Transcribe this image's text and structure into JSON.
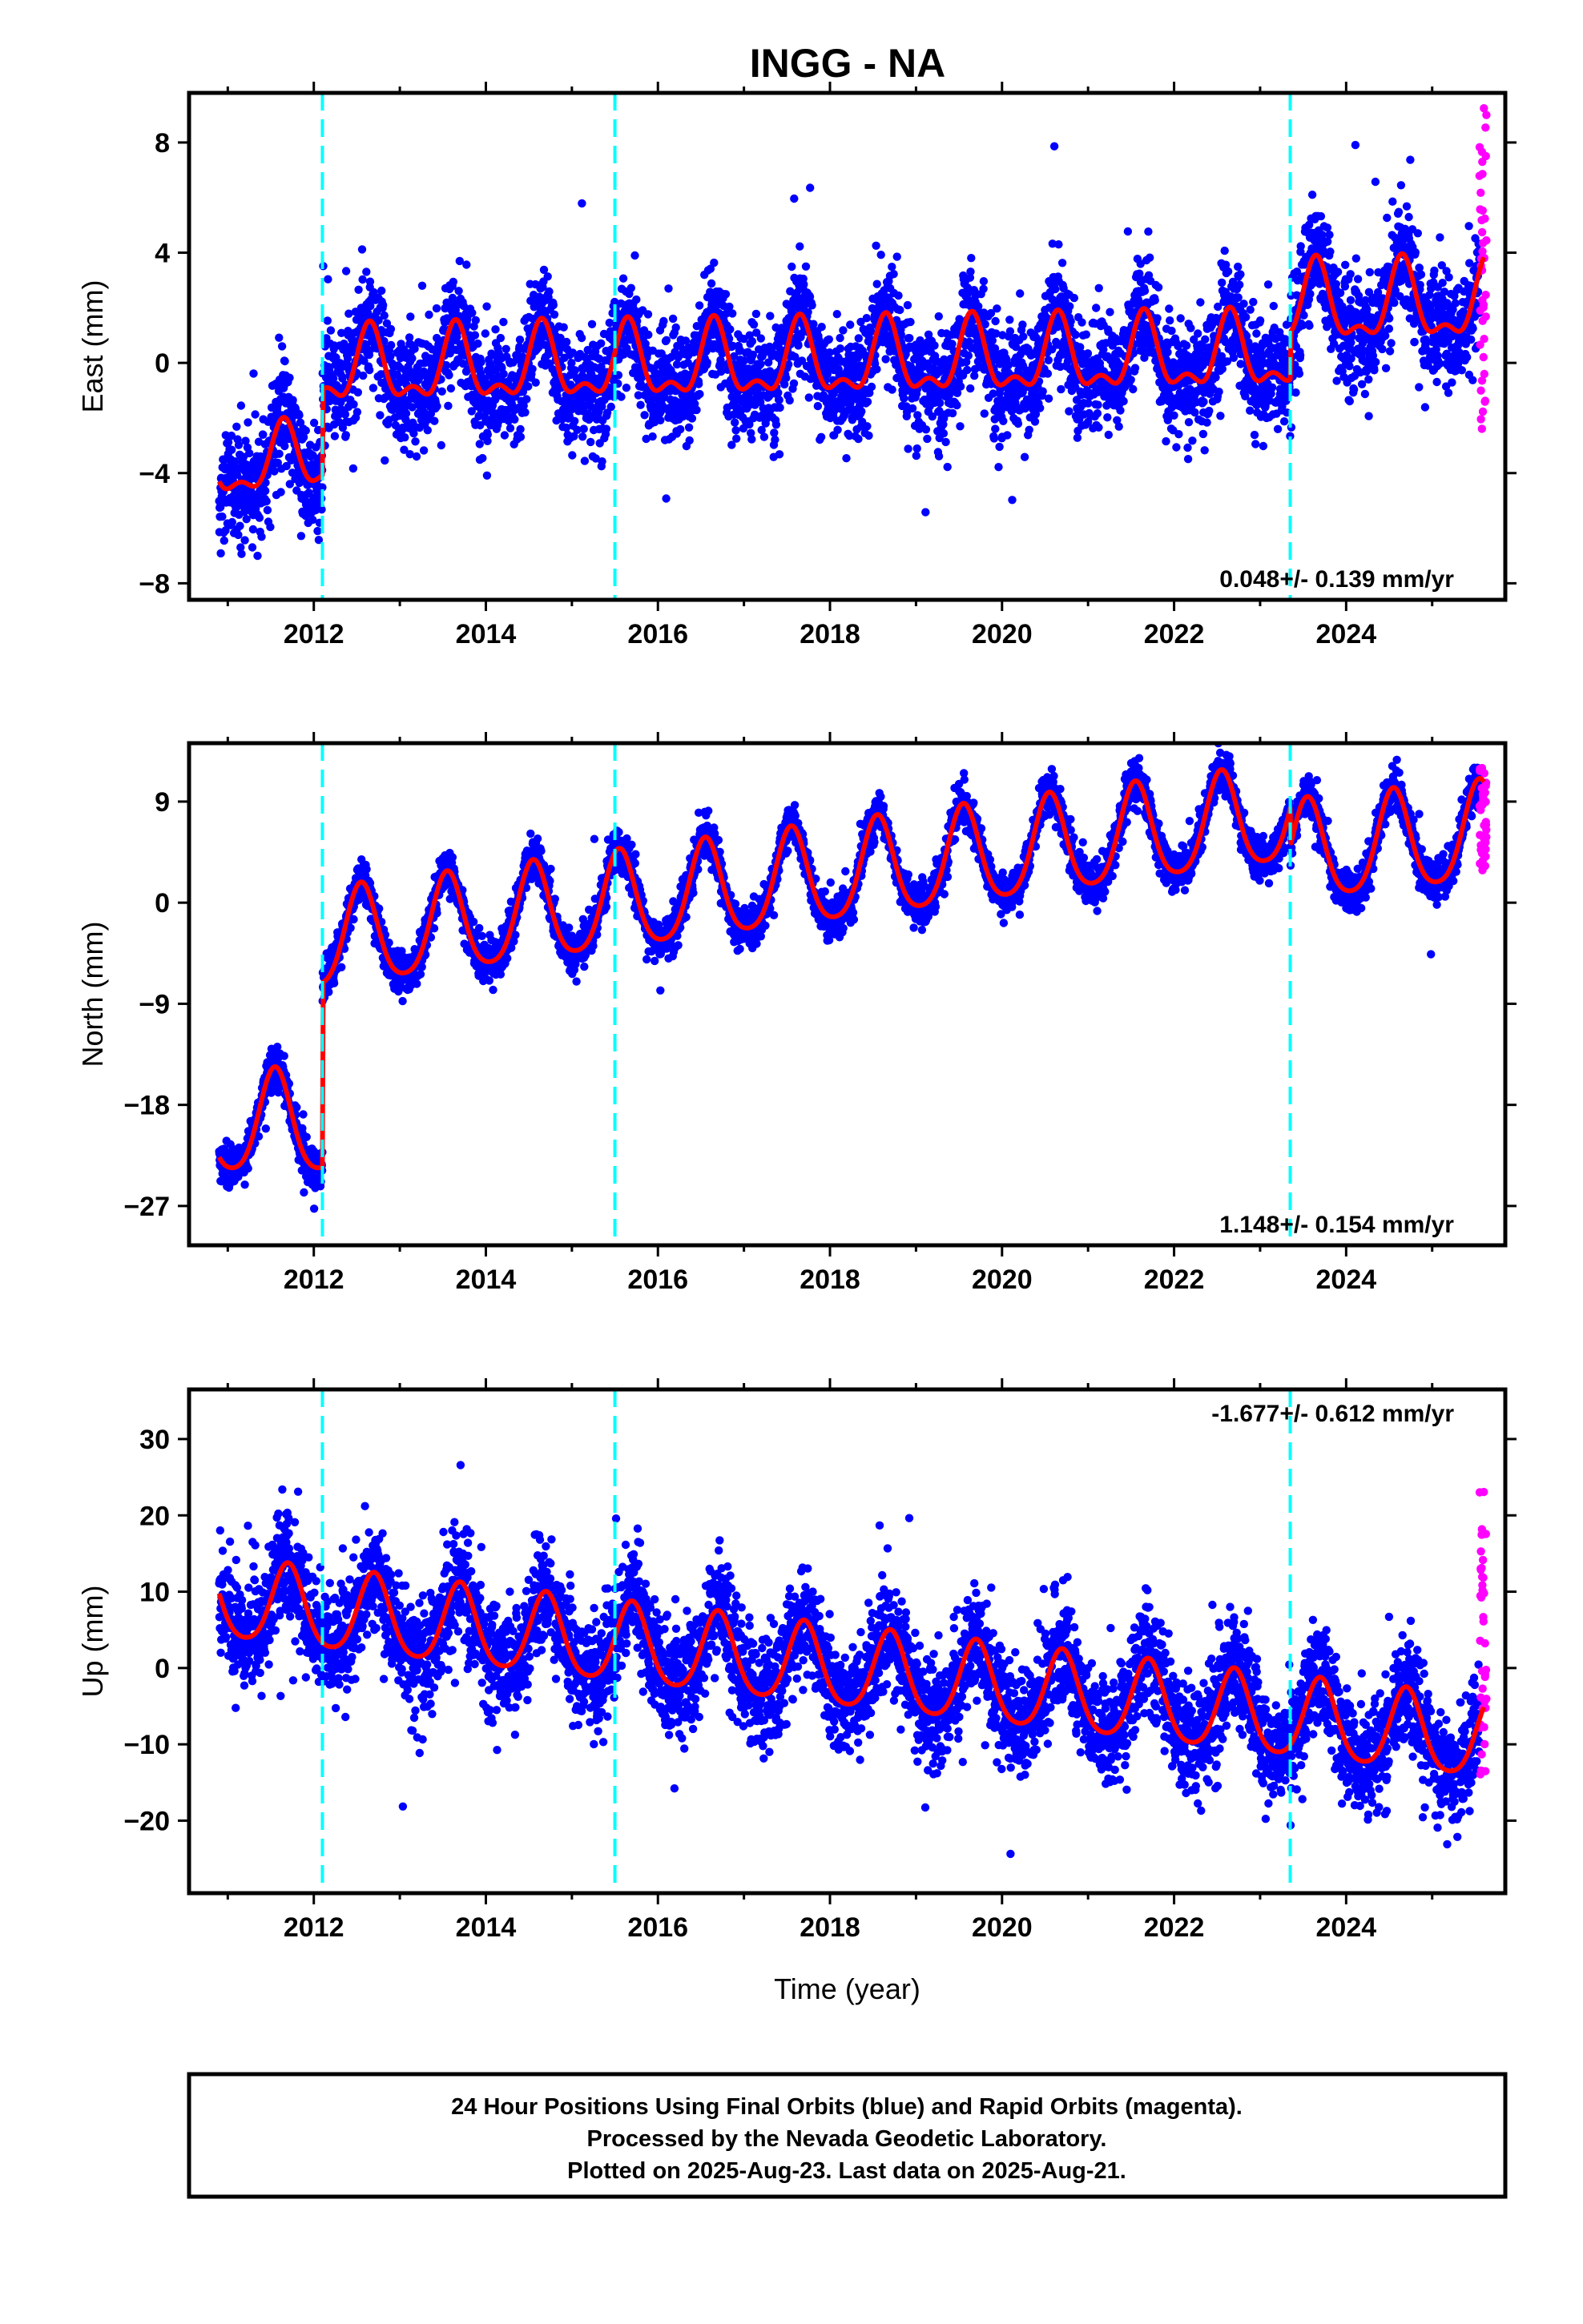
{
  "figure": {
    "title": "INGG - NA",
    "footer": [
      "24 Hour Positions Using Final Orbits (blue) and Rapid Orbits (magenta).",
      "Processed by the Nevada Geodetic Laboratory.",
      "Plotted on 2025-Aug-23. Last data on 2025-Aug-21."
    ],
    "colors": {
      "final_orbits": "#0000ff",
      "rapid_orbits": "#ff00ff",
      "model_fit": "#ff0000",
      "steps": "#00ffff"
    }
  },
  "chart_data": [
    {
      "type": "scatter",
      "component": "east",
      "ylabel": "East (mm)",
      "xlabel": "",
      "xlim": [
        2010.55,
        2025.85
      ],
      "ylim": [
        -8.6,
        9.8
      ],
      "xticks": [
        2012,
        2014,
        2016,
        2018,
        2020,
        2022,
        2024
      ],
      "yticks": [
        -8,
        -4,
        0,
        4,
        8
      ],
      "ytick_labels": [
        "−8",
        "−4",
        "0",
        "4",
        "8"
      ],
      "rate_label": "0.048+/- 0.139 mm/yr",
      "rate_position": "bottom-right",
      "steps": [
        2012.1,
        2015.5,
        2023.35
      ],
      "model": {
        "segments": [
          {
            "x0": 2010.9,
            "x1": 2012.1,
            "offset": -3.8,
            "rate": 0.3,
            "annual": 1.1,
            "semiannual": 0.5
          },
          {
            "x0": 2012.1,
            "x1": 2023.35,
            "offset": -0.3,
            "rate": 0.05,
            "annual": 1.2,
            "semiannual": 0.6
          },
          {
            "x0": 2023.35,
            "x1": 2025.6,
            "offset": 2.0,
            "rate": 0.05,
            "annual": 1.3,
            "semiannual": 0.6
          }
        ],
        "phase": 2012.65
      },
      "final_orbits": {
        "x_range": [
          2010.9,
          2025.55
        ],
        "scatter_sd": 1.0
      },
      "rapid_orbits": {
        "x_range": [
          2025.55,
          2025.63
        ],
        "y_range": [
          -2.4,
          9.4
        ]
      }
    },
    {
      "type": "scatter",
      "component": "north",
      "ylabel": "North (mm)",
      "xlabel": "",
      "xlim": [
        2010.55,
        2025.85
      ],
      "ylim": [
        -30.5,
        14.2
      ],
      "xticks": [
        2012,
        2014,
        2016,
        2018,
        2020,
        2022,
        2024
      ],
      "yticks": [
        -27,
        -18,
        -9,
        0,
        9
      ],
      "ytick_labels": [
        "−27",
        "−18",
        "−9",
        "0",
        "9"
      ],
      "rate_label": "1.148+/- 0.154 mm/yr",
      "rate_position": "bottom-right",
      "steps": [
        2012.1,
        2015.5,
        2023.35
      ],
      "model": {
        "segments": [
          {
            "x0": 2010.9,
            "x1": 2012.1,
            "offset": -19.8,
            "rate": 0.0,
            "annual": 4.5,
            "semiannual": 0.7
          },
          {
            "x0": 2012.1,
            "x1": 2023.35,
            "offset": -3.6,
            "rate": 1.0,
            "annual": 4.3,
            "semiannual": 0.7
          },
          {
            "x0": 2023.35,
            "x1": 2025.6,
            "offset": 4.2,
            "rate": 0.8,
            "annual": 4.4,
            "semiannual": 0.7
          }
        ],
        "phase": 2012.55
      },
      "final_orbits": {
        "x_range": [
          2010.9,
          2025.55
        ],
        "scatter_sd": 0.9
      },
      "rapid_orbits": {
        "x_range": [
          2025.55,
          2025.63
        ],
        "y_range": [
          2.3,
          12.3
        ]
      }
    },
    {
      "type": "scatter",
      "component": "up",
      "ylabel": "Up (mm)",
      "xlabel": "Time (year)",
      "xlim": [
        2010.55,
        2025.85
      ],
      "ylim": [
        -29.5,
        36.5
      ],
      "xticks": [
        2012,
        2014,
        2016,
        2018,
        2020,
        2022,
        2024
      ],
      "yticks": [
        -20,
        -10,
        0,
        10,
        20,
        30
      ],
      "ytick_labels": [
        "−20",
        "−10",
        "0",
        "10",
        "20",
        "30"
      ],
      "rate_label": "-1.677+/- 0.612 mm/yr",
      "rate_position": "top-right",
      "steps": [
        2012.1,
        2015.5,
        2023.35
      ],
      "model": {
        "segments": [
          {
            "x0": 2010.9,
            "x1": 2025.6,
            "offset": 8.8,
            "rate": -1.25,
            "annual": 5.2,
            "semiannual": 0.8
          }
        ],
        "phase": 2011.7
      },
      "final_orbits": {
        "x_range": [
          2010.9,
          2025.55
        ],
        "scatter_sd": 3.6
      },
      "rapid_orbits": {
        "x_range": [
          2025.55,
          2025.63
        ],
        "y_range": [
          -14.5,
          23.8
        ]
      }
    }
  ]
}
